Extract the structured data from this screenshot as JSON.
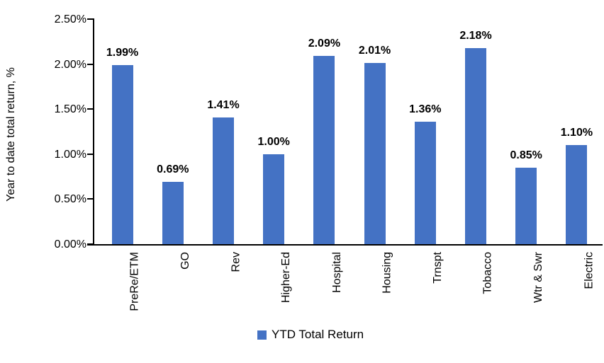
{
  "chart_data": {
    "type": "bar",
    "title": "",
    "categories": [
      "PreRe/ETM",
      "GO",
      "Rev",
      "Higher-Ed",
      "Hospital",
      "Housing",
      "Trnspt",
      "Tobacco",
      "Wtr & Swr",
      "Electric"
    ],
    "values": [
      1.99,
      0.69,
      1.41,
      1.0,
      2.09,
      2.01,
      1.36,
      2.18,
      0.85,
      1.1
    ],
    "value_labels": [
      "1.99%",
      "0.69%",
      "1.41%",
      "1.00%",
      "2.09%",
      "2.01%",
      "1.36%",
      "2.18%",
      "0.85%",
      "1.10%"
    ],
    "xlabel": "",
    "ylabel": "Year to date total return, %",
    "ylim": [
      0,
      2.5
    ],
    "ytick_labels": [
      "0.00%",
      "0.50%",
      "1.00%",
      "1.50%",
      "2.00%",
      "2.50%"
    ],
    "ytick_values": [
      0,
      0.5,
      1.0,
      1.5,
      2.0,
      2.5
    ],
    "legend": {
      "label": "YTD Total Return",
      "position": "bottom"
    },
    "grid": false,
    "colors": {
      "bar": "#4472C4",
      "axis": "#000000",
      "text": "#000000",
      "background": "#ffffff"
    }
  }
}
